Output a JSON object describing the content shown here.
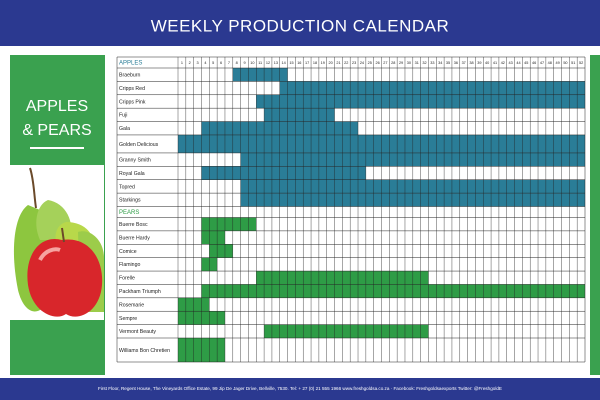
{
  "header": {
    "title": "WEEKLY PRODUCTION CALENDAR"
  },
  "panel": {
    "lines": [
      "APPLES",
      "& PEARS"
    ]
  },
  "calendar": {
    "weeks": [
      1,
      2,
      3,
      4,
      5,
      6,
      7,
      8,
      9,
      10,
      11,
      12,
      13,
      14,
      15,
      16,
      17,
      18,
      19,
      20,
      21,
      22,
      23,
      24,
      25,
      26,
      27,
      28,
      29,
      30,
      31,
      32,
      33,
      34,
      35,
      36,
      37,
      38,
      39,
      40,
      41,
      42,
      43,
      44,
      45,
      46,
      47,
      48,
      49,
      50,
      51,
      52
    ],
    "sections": [
      {
        "name": "APPLES",
        "color": "#2a7d97",
        "rows": [
          {
            "label": "Braeburn",
            "start": 8,
            "end": 14
          },
          {
            "label": "Cripps Red",
            "start": 14,
            "end": 52
          },
          {
            "label": "Cripps Pink",
            "start": 11,
            "end": 52
          },
          {
            "label": "Fuji",
            "start": 12,
            "end": 20
          },
          {
            "label": "Gala",
            "start": 4,
            "end": 23
          },
          {
            "label": "Golden Delicious",
            "start": 1,
            "end": 52
          },
          {
            "label": "Granny Smith",
            "start": 9,
            "end": 52
          },
          {
            "label": "Royal Gala",
            "start": 4,
            "end": 24
          },
          {
            "label": "Topred",
            "start": 9,
            "end": 52
          },
          {
            "label": "Starkings",
            "start": 9,
            "end": 52
          }
        ]
      },
      {
        "name": "PEARS",
        "color": "#2e9c46",
        "rows": [
          {
            "label": "Buerre Bosc",
            "start": 4,
            "end": 10
          },
          {
            "label": "Buerre Hardy",
            "start": 4,
            "end": 6
          },
          {
            "label": "Comice",
            "start": 5,
            "end": 7
          },
          {
            "label": "Flamingo",
            "start": 4,
            "end": 5
          },
          {
            "label": "Forelle",
            "start": 11,
            "end": 32
          },
          {
            "label": "Packham Triumph",
            "start": 4,
            "end": 52
          },
          {
            "label": "Rosemarie",
            "start": 1,
            "end": 4
          },
          {
            "label": "Sempre",
            "start": 1,
            "end": 6
          },
          {
            "label": "Vermont Beauty",
            "start": 12,
            "end": 32
          },
          {
            "label": "Williams Bon Chretien",
            "start": 1,
            "end": 6
          }
        ]
      }
    ]
  },
  "footer": {
    "text": "First Floor, Regent House, The Vineyards Office Estate, 99 Jip De Jager Drive, Bellville, 7530. Tel: + 27 (0) 21 555 1966 www.freshgoldsa.co.za · Facebook: Freshgoldsaexports Twitter: @FreshgoldE"
  }
}
